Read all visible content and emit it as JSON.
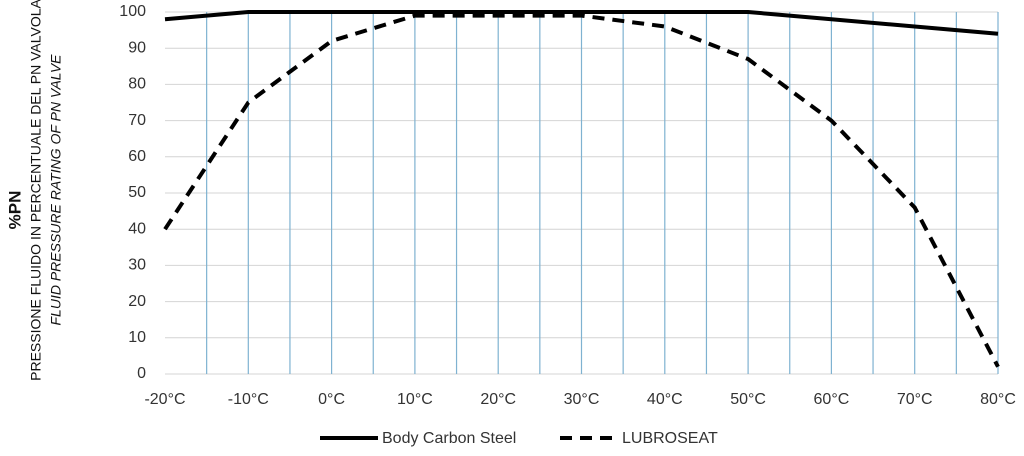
{
  "chart_data": {
    "type": "line",
    "ylabel_main": "%PN",
    "ylabel_it": "PRESSIONE FLUIDO IN PERCENTUALE DEL PN VALVOLA",
    "ylabel_en": "FLUID PRESSURE RATING OF PN VALVE",
    "x": [
      -20,
      -10,
      0,
      10,
      20,
      30,
      40,
      50,
      60,
      70,
      80
    ],
    "xlim": [
      -20,
      80
    ],
    "xticks": [
      {
        "value": -20,
        "label": "-20°C"
      },
      {
        "value": -10,
        "label": "-10°C"
      },
      {
        "value": 0,
        "label": "0°C"
      },
      {
        "value": 10,
        "label": "10°C"
      },
      {
        "value": 20,
        "label": "20°C"
      },
      {
        "value": 30,
        "label": "30°C"
      },
      {
        "value": 40,
        "label": "40°C"
      },
      {
        "value": 50,
        "label": "50°C"
      },
      {
        "value": 60,
        "label": "60°C"
      },
      {
        "value": 70,
        "label": "70°C"
      },
      {
        "value": 80,
        "label": "80°C"
      }
    ],
    "xgrid": [
      -15,
      -10,
      -5,
      0,
      5,
      10,
      15,
      20,
      25,
      30,
      35,
      40,
      45,
      50,
      55,
      60,
      65,
      70,
      75,
      80
    ],
    "ylim": [
      0,
      100
    ],
    "yticks": [
      0,
      10,
      20,
      30,
      40,
      50,
      60,
      70,
      80,
      90,
      100
    ],
    "grid": true,
    "legend": "bottom",
    "series": [
      {
        "name": "Body Carbon Steel",
        "color": "#000000",
        "dashed": false,
        "values": [
          98,
          100,
          100,
          100,
          100,
          100,
          100,
          100,
          98,
          96,
          94
        ]
      },
      {
        "name": "LUBROSEAT",
        "color": "#000000",
        "dashed": true,
        "values": [
          40,
          75,
          92,
          99,
          99,
          99,
          96,
          87,
          70,
          46,
          2
        ]
      }
    ]
  }
}
